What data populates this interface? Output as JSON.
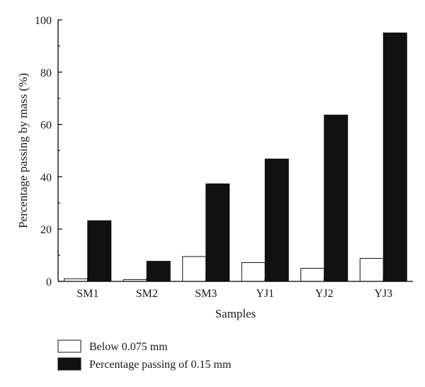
{
  "chart_data": {
    "type": "bar",
    "title": "",
    "xlabel": "Samples",
    "ylabel": "Percentage passing by mass (%)",
    "ylim": [
      0,
      100
    ],
    "yticks": [
      0,
      20,
      40,
      60,
      80,
      100
    ],
    "categories": [
      "SM1",
      "SM2",
      "SM3",
      "YJ1",
      "YJ2",
      "YJ3"
    ],
    "series": [
      {
        "name": "Below 0.075 mm",
        "color": "#ffffff",
        "values": [
          1.0,
          0.7,
          9.5,
          7.2,
          5.0,
          8.8
        ]
      },
      {
        "name": "Percentage passing of 0.15 mm",
        "color": "#111111",
        "values": [
          23.2,
          7.7,
          37.3,
          46.8,
          63.6,
          95.0
        ]
      }
    ],
    "grid": false,
    "legend": "bottom-left"
  }
}
